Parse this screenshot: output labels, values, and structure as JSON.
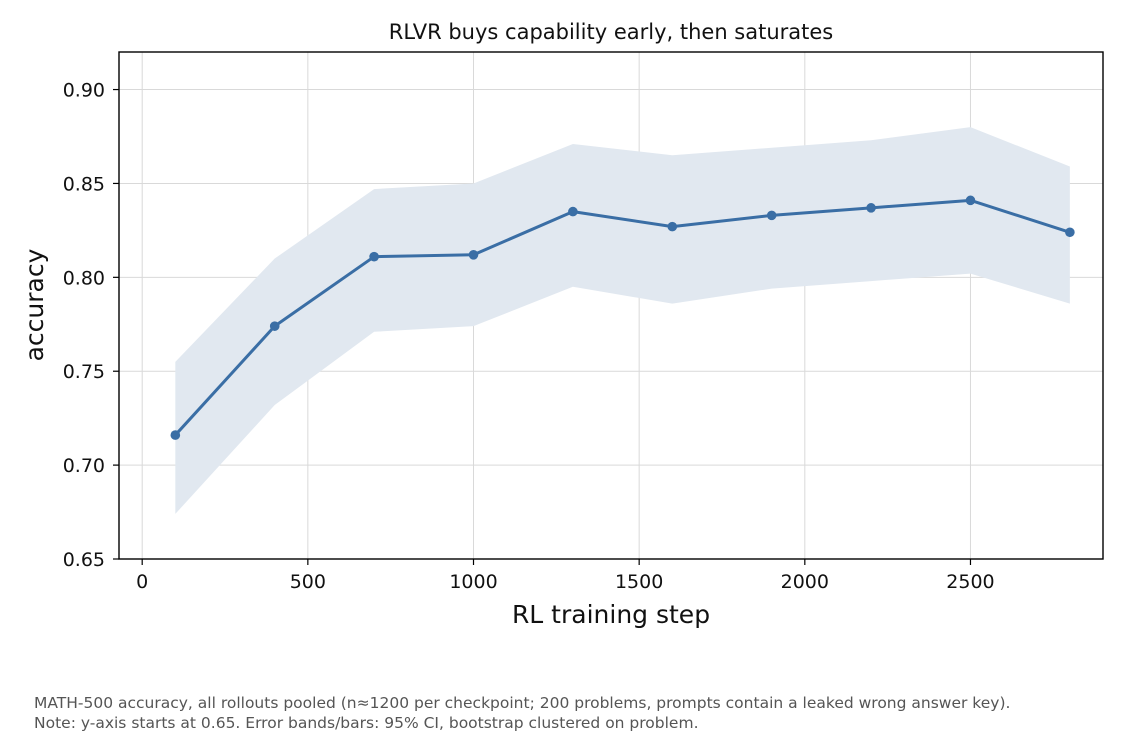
{
  "chart_data": {
    "type": "line",
    "title": "RLVR buys capability early, then saturates",
    "xlabel": "RL training step",
    "ylabel": "accuracy",
    "xlim": [
      -70,
      2900
    ],
    "ylim": [
      0.65,
      0.92
    ],
    "xticks": [
      0,
      500,
      1000,
      1500,
      2000,
      2500
    ],
    "yticks": [
      0.65,
      0.7,
      0.75,
      0.8,
      0.85,
      0.9
    ],
    "xtick_labels": [
      "0",
      "500",
      "1000",
      "1500",
      "2000",
      "2500"
    ],
    "ytick_labels": [
      "0.65",
      "0.70",
      "0.75",
      "0.80",
      "0.85",
      "0.90"
    ],
    "grid": true,
    "series": [
      {
        "x": [
          100,
          400,
          700,
          1000,
          1300,
          1600,
          1900,
          2200,
          2500,
          2800
        ],
        "y": [
          0.716,
          0.774,
          0.811,
          0.812,
          0.835,
          0.827,
          0.833,
          0.837,
          0.841,
          0.824
        ],
        "ci_low": [
          0.674,
          0.732,
          0.771,
          0.774,
          0.795,
          0.786,
          0.794,
          0.798,
          0.802,
          0.786
        ],
        "ci_high": [
          0.755,
          0.81,
          0.847,
          0.85,
          0.871,
          0.865,
          0.869,
          0.873,
          0.88,
          0.859
        ],
        "color": "#3a6ea5",
        "band_color": "#e1e8f0"
      }
    ]
  },
  "caption": {
    "line1": "MATH-500 accuracy, all rollouts pooled (n≈1200 per checkpoint; 200 problems, prompts contain a leaked wrong answer key).",
    "line2": "Note: y-axis starts at 0.65. Error bands/bars: 95% CI, bootstrap clustered on problem."
  }
}
